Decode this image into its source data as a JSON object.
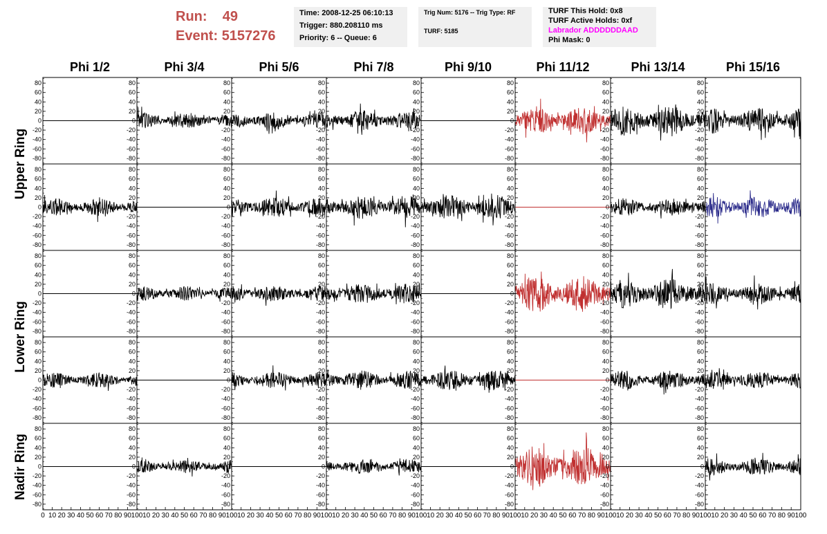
{
  "header": {
    "run_label": "Run:",
    "run_value": "49",
    "event_label": "Event:",
    "event_value": "5157276",
    "box1": [
      "Time: 2008-12-25 06:10:13",
      "Trigger: 880.208110 ms",
      "Priority: 6 -- Queue: 6"
    ],
    "box2": [
      "Trig Num: 5176 -- Trig Type: RF",
      "TURF: 5185"
    ],
    "box3": [
      "TURF This Hold: 0x8",
      "TURF Active Holds: 0xf",
      "Labrador ADDDDDDAAD",
      "Phi Mask: 0"
    ],
    "labrador_color": "#ff00ff"
  },
  "columns": [
    "Phi 1/2",
    "Phi 3/4",
    "Phi 5/6",
    "Phi 7/8",
    "Phi 9/10",
    "Phi 11/12",
    "Phi 13/14",
    "Phi 15/16"
  ],
  "ring_labels": [
    {
      "text": "Upper Ring",
      "rows": [
        0,
        1
      ]
    },
    {
      "text": "Lower Ring",
      "rows": [
        2,
        3
      ]
    },
    {
      "text": "Nadir Ring",
      "rows": [
        4,
        4
      ]
    }
  ],
  "colors": {
    "black": "#000000",
    "red": "#c03030",
    "blue": "#2a2a8a"
  },
  "chart_data": {
    "type": "line",
    "x_ticks": [
      0,
      10,
      20,
      30,
      40,
      50,
      60,
      70,
      80,
      90,
      100
    ],
    "xlim": [
      0,
      100
    ],
    "y_ticks": [
      80,
      60,
      40,
      20,
      0,
      -20,
      -40,
      -60,
      -80
    ],
    "ylim": [
      -92,
      92
    ],
    "panels": [
      [
        {
          "amp": 0,
          "color": "black"
        },
        {
          "amp": 11,
          "color": "black"
        },
        {
          "amp": 12,
          "color": "black"
        },
        {
          "amp": 14,
          "color": "black"
        },
        {
          "amp": 0,
          "color": "black"
        },
        {
          "amp": 18,
          "color": "red"
        },
        {
          "amp": 20,
          "color": "black"
        },
        {
          "amp": 17,
          "color": "black"
        }
      ],
      [
        {
          "amp": 12,
          "color": "black"
        },
        {
          "amp": 0,
          "color": "black"
        },
        {
          "amp": 14,
          "color": "black"
        },
        {
          "amp": 16,
          "color": "black"
        },
        {
          "amp": 17,
          "color": "black"
        },
        {
          "amp": 0,
          "color": "red"
        },
        {
          "amp": 12,
          "color": "black"
        },
        {
          "amp": 15,
          "color": "blue"
        }
      ],
      [
        {
          "amp": 0,
          "color": "black"
        },
        {
          "amp": 10,
          "color": "black"
        },
        {
          "amp": 11,
          "color": "black"
        },
        {
          "amp": 14,
          "color": "black"
        },
        {
          "amp": 0,
          "color": "black"
        },
        {
          "amp": 25,
          "color": "red"
        },
        {
          "amp": 20,
          "color": "black"
        },
        {
          "amp": 14,
          "color": "black"
        }
      ],
      [
        {
          "amp": 10,
          "color": "black"
        },
        {
          "amp": 0,
          "color": "black"
        },
        {
          "amp": 11,
          "color": "black"
        },
        {
          "amp": 13,
          "color": "black"
        },
        {
          "amp": 14,
          "color": "black"
        },
        {
          "amp": 0,
          "color": "red"
        },
        {
          "amp": 13,
          "color": "black"
        },
        {
          "amp": 12,
          "color": "black"
        }
      ],
      [
        {
          "amp": 0,
          "color": "black"
        },
        {
          "amp": 9,
          "color": "black"
        },
        {
          "amp": 0,
          "color": "black"
        },
        {
          "amp": 10,
          "color": "black"
        },
        {
          "amp": 0,
          "color": "black"
        },
        {
          "amp": 28,
          "color": "red"
        },
        {
          "amp": 0,
          "color": "black"
        },
        {
          "amp": 12,
          "color": "black"
        }
      ]
    ]
  }
}
